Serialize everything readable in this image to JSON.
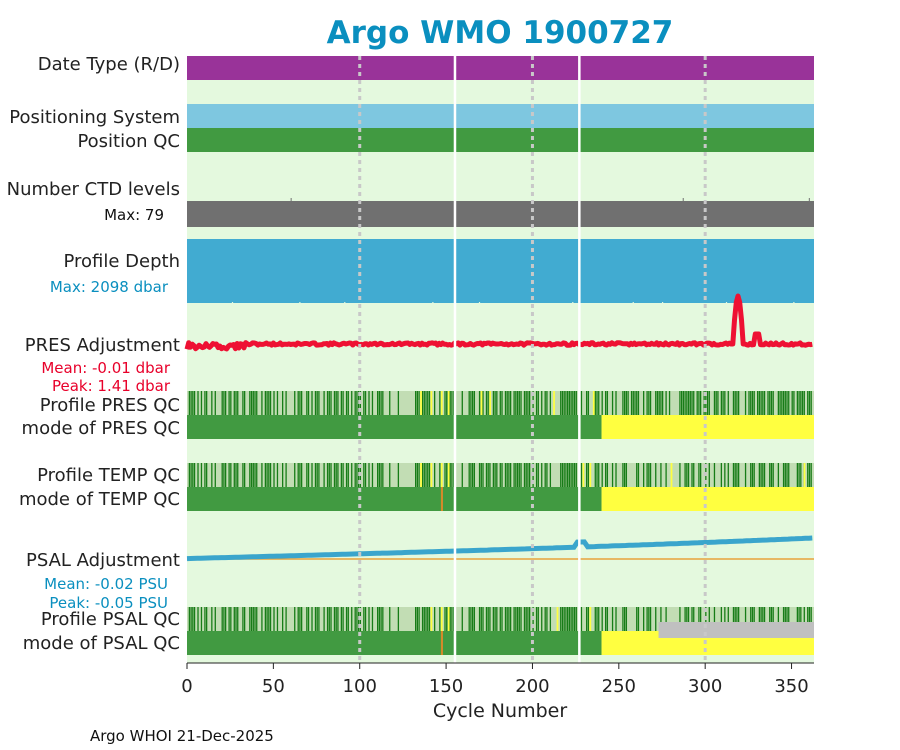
{
  "chart_data": {
    "type": "timeline",
    "title": "Argo WMO 1900727",
    "xlabel": "Cycle Number",
    "xlim": [
      0,
      363
    ],
    "xticks": [
      0,
      50,
      100,
      150,
      200,
      250,
      300,
      350
    ],
    "footer": "Argo WHOI 21-Dec-2025",
    "colors": {
      "title": "#0a8fbf",
      "panel_bg": "#e4f9de",
      "grid": "#c8c8c8",
      "date_type": "#993399",
      "positioning": "#7ec7e0",
      "qc_good": "#419a41",
      "qc_dark": "#177c17",
      "qc_light": "#c2ddb4",
      "qc_yellow": "#ffff40",
      "qc_orange": "#d68a2a",
      "qc_gray": "#c0c0c0",
      "ctd": "#707070",
      "depth": "#41abd1",
      "pres_adj": "#ee1133",
      "psal_adj": "#3aa5cc",
      "psal_ref": "#e8a23c",
      "blue_text": "#0a8fbf",
      "red_text": "#e8002a"
    },
    "gaps": [
      155,
      227
    ],
    "grid_cycles": [
      100,
      200,
      300
    ],
    "labels": {
      "date_type": "Date Type (R/D)",
      "positioning": "Positioning System",
      "position_qc": "Position QC",
      "ctd_levels": "Number CTD levels",
      "ctd_max": "Max: 79",
      "profile_depth": "Profile Depth",
      "depth_max": "Max: 2098 dbar",
      "pres_adj": "PRES Adjustment",
      "pres_mean": "Mean: -0.01 dbar",
      "pres_peak": "Peak: 1.41 dbar",
      "pres_qc": "Profile PRES QC",
      "pres_mode": "mode of PRES QC",
      "temp_qc": "Profile TEMP QC",
      "temp_mode": "mode of TEMP QC",
      "psal_adj": "PSAL Adjustment",
      "psal_mean": "Mean: -0.02 PSU",
      "psal_peak": "Peak: -0.05 PSU",
      "psal_qc": "Profile PSAL QC",
      "psal_mode": "mode of PSAL QC"
    },
    "series": {
      "mode_yellow_from": 240,
      "psal_gray_from": 273,
      "orange_cycle": 147,
      "pres_yellow_cycles": [
        135,
        141,
        147,
        151,
        170,
        175,
        212,
        235
      ],
      "temp_yellow_cycles": [
        135,
        141,
        147,
        151,
        229,
        233,
        280,
        357
      ],
      "psal_yellow_cycles": [
        141,
        147,
        151,
        214,
        233
      ],
      "pres_peak_cycles": [
        316,
        322
      ],
      "pres_bump_cycle": 330,
      "psal_adj_start": -0.001,
      "psal_adj_end": -0.05
    }
  }
}
